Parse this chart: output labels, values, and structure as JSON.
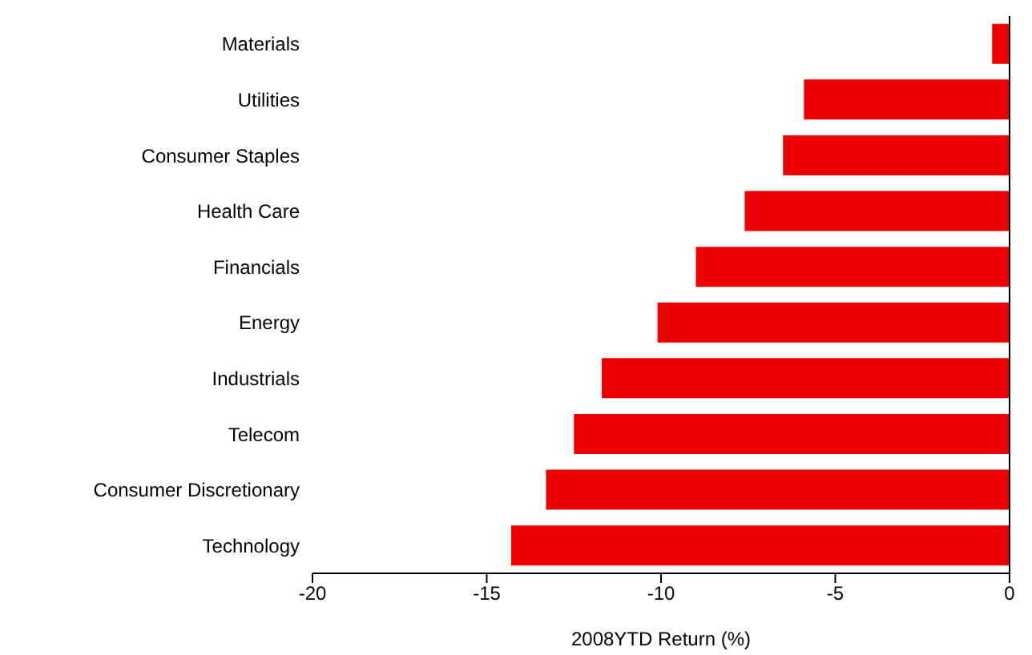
{
  "chart_data": {
    "type": "bar",
    "orientation": "horizontal",
    "xlabel": "2008YTD Return (%)",
    "categories": [
      "Materials",
      "Utilities",
      "Consumer Staples",
      "Health Care",
      "Financials",
      "Energy",
      "Industrials",
      "Telecom",
      "Consumer Discretionary",
      "Technology"
    ],
    "values": [
      -0.5,
      -5.9,
      -6.5,
      -7.6,
      -9.0,
      -10.1,
      -11.7,
      -12.5,
      -13.3,
      -14.3
    ],
    "color": "#ee0000",
    "xlim": [
      -20,
      0
    ],
    "xticks": [
      -20,
      -15,
      -10,
      -5,
      0
    ],
    "grid": false,
    "legend": false
  }
}
